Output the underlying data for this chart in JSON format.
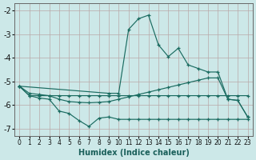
{
  "xlabel": "Humidex (Indice chaleur)",
  "bg_color": "#cce8e8",
  "grid_color": "#b8a8a8",
  "line_color": "#1a6b60",
  "xlim": [
    -0.5,
    23.5
  ],
  "ylim": [
    -7.3,
    -1.7
  ],
  "yticks": [
    -7,
    -6,
    -5,
    -4,
    -3,
    -2
  ],
  "xticks": [
    0,
    1,
    2,
    3,
    4,
    5,
    6,
    7,
    8,
    9,
    10,
    11,
    12,
    13,
    14,
    15,
    16,
    17,
    18,
    19,
    20,
    21,
    22,
    23
  ],
  "line_peak_x": [
    0,
    9,
    10,
    11,
    12,
    13,
    14,
    15,
    16,
    17,
    18,
    19,
    20,
    21,
    22,
    23
  ],
  "line_peak_y": [
    -5.2,
    -5.5,
    -5.5,
    -2.8,
    -2.35,
    -2.2,
    -3.45,
    -3.95,
    -3.6,
    -4.3,
    -4.45,
    -4.6,
    -4.6,
    -5.75,
    -5.8,
    -6.5
  ],
  "line_rise_x": [
    0,
    1,
    2,
    3,
    4,
    5,
    6,
    7,
    8,
    9,
    10,
    11,
    12,
    13,
    14,
    15,
    16,
    17,
    18,
    19,
    20,
    21,
    22,
    23
  ],
  "line_rise_y": [
    -5.2,
    -5.5,
    -5.55,
    -5.6,
    -5.75,
    -5.85,
    -5.88,
    -5.9,
    -5.88,
    -5.85,
    -5.75,
    -5.65,
    -5.55,
    -5.45,
    -5.35,
    -5.25,
    -5.15,
    -5.05,
    -4.95,
    -4.85,
    -4.85,
    -5.75,
    -5.8,
    -6.5
  ],
  "line_flat_x": [
    0,
    1,
    2,
    3,
    4,
    5,
    6,
    7,
    8,
    9,
    10,
    11,
    12,
    13,
    14,
    15,
    16,
    17,
    18,
    19,
    20,
    21,
    22,
    23
  ],
  "line_flat_y": [
    -5.2,
    -5.6,
    -5.6,
    -5.6,
    -5.6,
    -5.6,
    -5.6,
    -5.6,
    -5.6,
    -5.6,
    -5.6,
    -5.6,
    -5.6,
    -5.6,
    -5.6,
    -5.6,
    -5.6,
    -5.6,
    -5.6,
    -5.6,
    -5.6,
    -5.6,
    -5.6,
    -5.6
  ],
  "line_dip_x": [
    0,
    1,
    2,
    3,
    4,
    5,
    6,
    7,
    8,
    9,
    10,
    11,
    12,
    13,
    14,
    15,
    16,
    17,
    18,
    19,
    20,
    21,
    22,
    23
  ],
  "line_dip_y": [
    -5.2,
    -5.6,
    -5.7,
    -5.75,
    -6.25,
    -6.35,
    -6.65,
    -6.9,
    -6.55,
    -6.5,
    -6.6,
    -6.6,
    -6.6,
    -6.6,
    -6.6,
    -6.6,
    -6.6,
    -6.6,
    -6.6,
    -6.6,
    -6.6,
    -6.6,
    -6.6,
    -6.6
  ]
}
